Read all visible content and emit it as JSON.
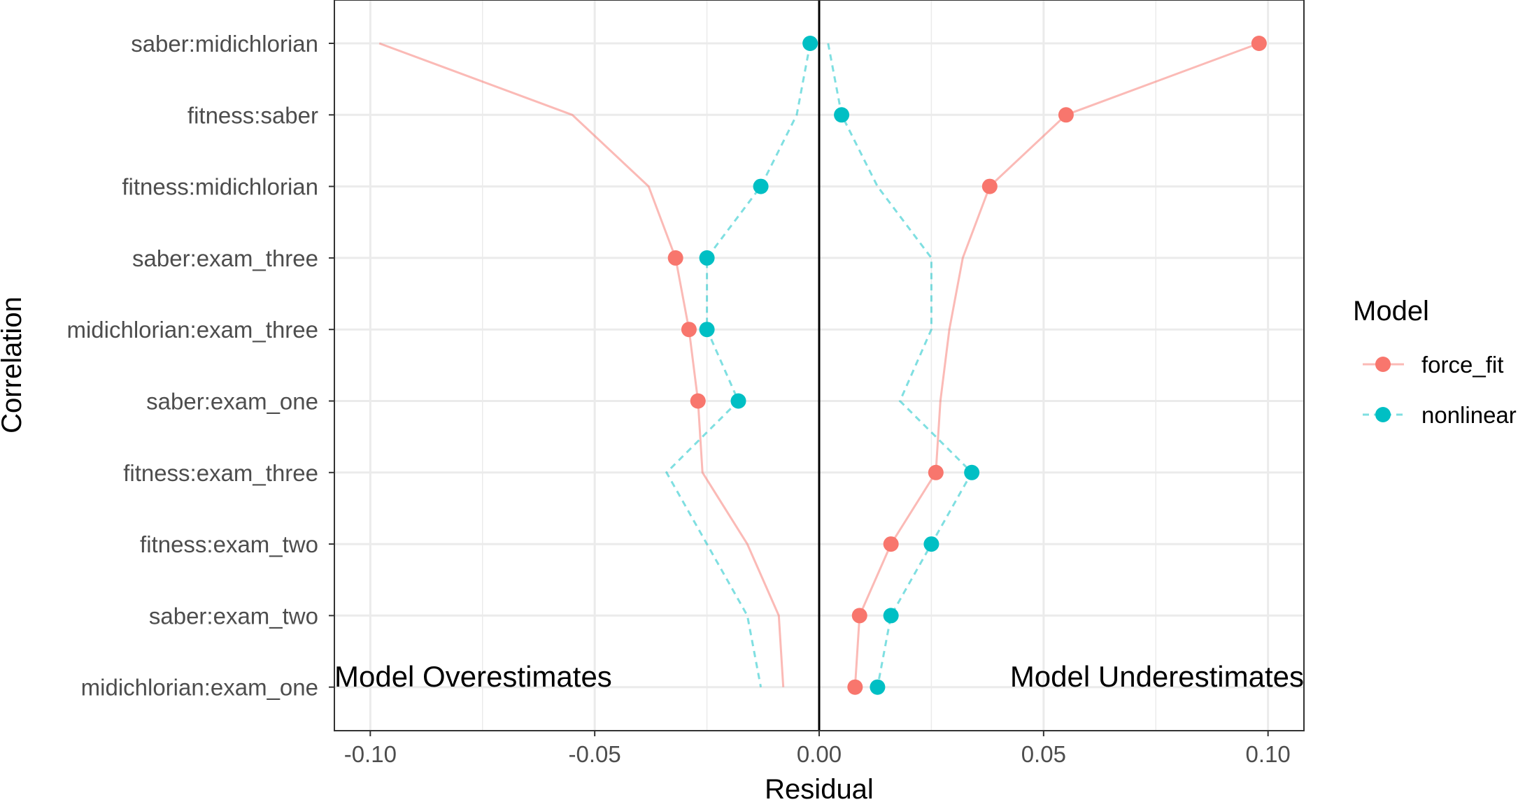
{
  "chart_data": {
    "type": "line",
    "xlabel": "Residual",
    "ylabel": "Correlation",
    "xlim": [
      -0.108,
      0.108
    ],
    "xticks": [
      -0.1,
      -0.05,
      0.0,
      0.05,
      0.1
    ],
    "xtick_labels": [
      "-0.10",
      "-0.05",
      "0.00",
      "0.05",
      "0.10"
    ],
    "categories": [
      "saber:midichlorian",
      "fitness:saber",
      "fitness:midichlorian",
      "saber:exam_three",
      "midichlorian:exam_three",
      "saber:exam_one",
      "fitness:exam_three",
      "fitness:exam_two",
      "saber:exam_two",
      "midichlorian:exam_one"
    ],
    "series": [
      {
        "name": "force_fit",
        "color": "#F8766D",
        "line_style": "solid",
        "points": [
          0.098,
          0.055,
          0.038,
          -0.032,
          -0.029,
          -0.027,
          0.026,
          0.016,
          0.009,
          0.008
        ],
        "line_negative": [
          -0.098,
          -0.055,
          -0.038,
          -0.032,
          -0.029,
          -0.027,
          -0.026,
          -0.016,
          -0.009,
          -0.008
        ],
        "line_positive": [
          0.098,
          0.055,
          0.038,
          0.032,
          0.029,
          0.027,
          0.026,
          0.016,
          0.009,
          0.008
        ]
      },
      {
        "name": "nonlinear",
        "color": "#00BFC4",
        "line_style": "dashed",
        "points": [
          -0.002,
          0.005,
          -0.013,
          -0.025,
          -0.025,
          -0.018,
          0.034,
          0.025,
          0.016,
          0.013
        ],
        "line_negative": [
          -0.002,
          -0.005,
          -0.013,
          -0.025,
          -0.025,
          -0.018,
          -0.034,
          -0.025,
          -0.016,
          -0.013
        ],
        "line_positive": [
          0.002,
          0.005,
          0.013,
          0.025,
          0.025,
          0.018,
          0.034,
          0.025,
          0.016,
          0.013
        ]
      }
    ],
    "annotations": {
      "left": "Model Overestimates",
      "right": "Model Underestimates"
    },
    "legend": {
      "title": "Model",
      "placement": "right",
      "entries": [
        "force_fit",
        "nonlinear"
      ]
    },
    "reference_line_x": 0
  }
}
